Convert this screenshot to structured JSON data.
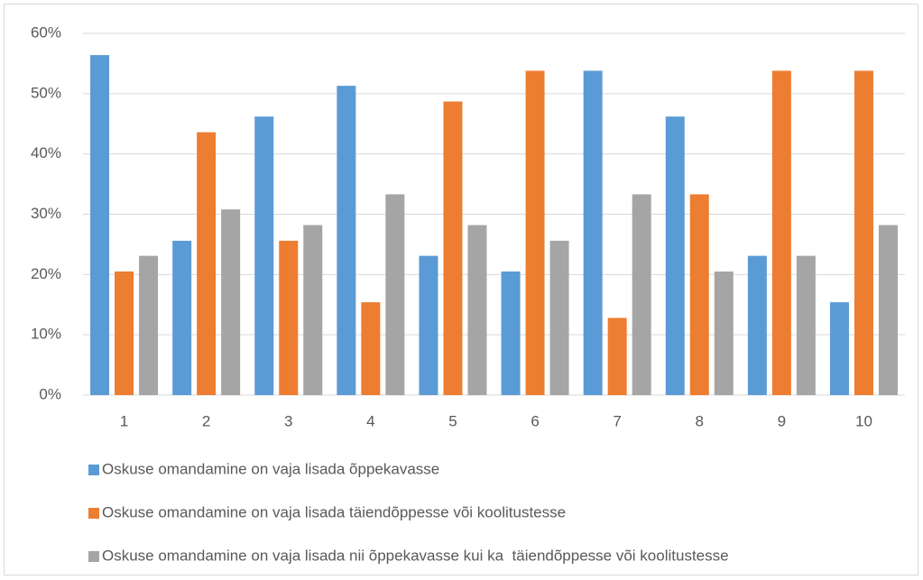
{
  "chart_data": {
    "type": "bar",
    "categories": [
      "1",
      "2",
      "3",
      "4",
      "5",
      "6",
      "7",
      "8",
      "9",
      "10"
    ],
    "series": [
      {
        "name": "Oskuse omandamine on vaja lisada õppekavasse",
        "color": "#5b9bd5",
        "values": [
          56.4,
          25.6,
          46.2,
          51.3,
          23.1,
          20.5,
          53.8,
          46.2,
          23.1,
          15.4
        ]
      },
      {
        "name": "Oskuse omandamine on vaja lisada täiendõppesse või koolitustesse",
        "color": "#ed7d31",
        "values": [
          20.5,
          43.6,
          25.6,
          15.4,
          48.7,
          53.8,
          12.8,
          33.3,
          53.8,
          53.8
        ]
      },
      {
        "name": "Oskuse omandamine on vaja lisada nii õppekavasse kui ka  täiendõppesse või koolitustesse",
        "color": "#a5a5a5",
        "values": [
          23.1,
          30.8,
          28.2,
          33.3,
          28.2,
          25.6,
          33.3,
          20.5,
          23.1,
          28.2
        ]
      }
    ],
    "ylim": [
      0,
      60
    ],
    "yticks": [
      {
        "value": 0,
        "label": "0%"
      },
      {
        "value": 10,
        "label": "10%"
      },
      {
        "value": 20,
        "label": "20%"
      },
      {
        "value": 30,
        "label": "30%"
      },
      {
        "value": 40,
        "label": "40%"
      },
      {
        "value": 50,
        "label": "50%"
      },
      {
        "value": 60,
        "label": "60%"
      }
    ],
    "grid": true,
    "legend": "bottom"
  }
}
